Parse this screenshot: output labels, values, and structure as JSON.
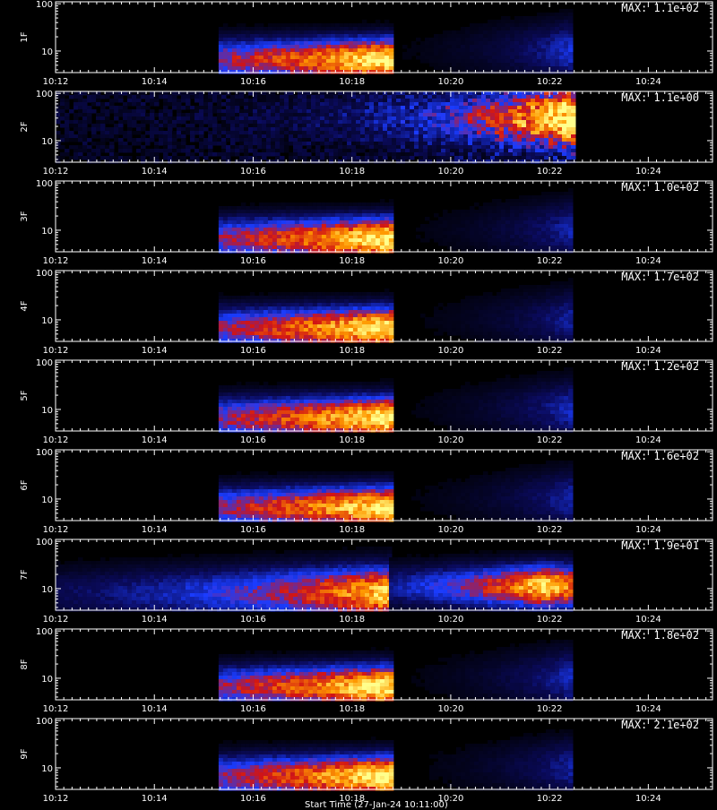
{
  "figure": {
    "footer_label": "Start Time (27-Jan-24 10:11:00)"
  },
  "chart_data": {
    "type": "heatmap",
    "x_ticks": [
      "10:12",
      "10:14",
      "10:16",
      "10:18",
      "10:20",
      "10:22",
      "10:24"
    ],
    "x_tick_minutes": [
      12,
      14,
      16,
      18,
      20,
      22,
      24
    ],
    "xlim_minutes": [
      12,
      25.3
    ],
    "x_unit": "minutes after 10:00",
    "y_ticks": [
      "10",
      "100"
    ],
    "y_scale": "log",
    "ylim": [
      3.5,
      110
    ],
    "colormap": [
      "#000000",
      "#0a0a5a",
      "#1a3cff",
      "#d21414",
      "#ff9a00",
      "#ffff8c"
    ],
    "panels": [
      {
        "label": "1F",
        "max_label": "MAX: 1.1e+02",
        "blobs": [
          {
            "x0": 15.3,
            "x1": 18.75,
            "yc": 6.5,
            "peak_x": 18.65,
            "peak_v": 1.0,
            "grow": 5,
            "spread": 0.45
          },
          {
            "x0": 18.75,
            "x1": 22.45,
            "yc": 10,
            "peak_x": 22.4,
            "peak_v": 0.35,
            "grow": 1.5,
            "spread": 0.6
          }
        ]
      },
      {
        "label": "2F",
        "max_label": "MAX: 1.1e+00",
        "blobs": [
          {
            "x0": 12,
            "x1": 22.45,
            "yc": 30,
            "peak_x": 22.4,
            "peak_v": 0.95,
            "grow": 2.2,
            "spread": 0.55,
            "noise": 0.35
          }
        ]
      },
      {
        "label": "3F",
        "max_label": "MAX: 1.0e+02",
        "blobs": [
          {
            "x0": 15.3,
            "x1": 18.75,
            "yc": 6.5,
            "peak_x": 18.65,
            "peak_v": 1.0,
            "grow": 5,
            "spread": 0.45
          },
          {
            "x0": 18.75,
            "x1": 22.45,
            "yc": 10,
            "peak_x": 22.4,
            "peak_v": 0.3,
            "grow": 1.5,
            "spread": 0.6
          }
        ]
      },
      {
        "label": "4F",
        "max_label": "MAX: 1.7e+02",
        "blobs": [
          {
            "x0": 15.3,
            "x1": 18.75,
            "yc": 6.5,
            "peak_x": 18.65,
            "peak_v": 1.0,
            "grow": 5,
            "spread": 0.45
          },
          {
            "x0": 18.75,
            "x1": 22.45,
            "yc": 10,
            "peak_x": 22.4,
            "peak_v": 0.28,
            "grow": 1.5,
            "spread": 0.6
          }
        ]
      },
      {
        "label": "5F",
        "max_label": "MAX: 1.2e+02",
        "blobs": [
          {
            "x0": 15.3,
            "x1": 18.75,
            "yc": 6.5,
            "peak_x": 18.65,
            "peak_v": 1.0,
            "grow": 5,
            "spread": 0.45
          },
          {
            "x0": 18.75,
            "x1": 22.45,
            "yc": 10,
            "peak_x": 22.4,
            "peak_v": 0.32,
            "grow": 1.5,
            "spread": 0.6
          }
        ]
      },
      {
        "label": "6F",
        "max_label": "MAX: 1.6e+02",
        "blobs": [
          {
            "x0": 15.3,
            "x1": 18.75,
            "yc": 6.5,
            "peak_x": 18.65,
            "peak_v": 1.0,
            "grow": 5,
            "spread": 0.45
          },
          {
            "x0": 18.75,
            "x1": 22.45,
            "yc": 10,
            "peak_x": 22.4,
            "peak_v": 0.3,
            "grow": 1.5,
            "spread": 0.6
          }
        ]
      },
      {
        "label": "7F",
        "max_label": "MAX: 1.9e+01",
        "blobs": [
          {
            "x0": 12,
            "x1": 18.75,
            "yc": 8,
            "peak_x": 18.65,
            "peak_v": 0.92,
            "grow": 4,
            "spread": 0.55
          },
          {
            "x0": 18.75,
            "x1": 22.45,
            "yc": 11,
            "peak_x": 21.9,
            "peak_v": 0.95,
            "grow": 2.5,
            "spread": 0.45
          }
        ]
      },
      {
        "label": "8F",
        "max_label": "MAX: 1.8e+02",
        "blobs": [
          {
            "x0": 15.3,
            "x1": 18.75,
            "yc": 6.5,
            "peak_x": 18.65,
            "peak_v": 1.0,
            "grow": 5,
            "spread": 0.45
          },
          {
            "x0": 18.75,
            "x1": 22.45,
            "yc": 10,
            "peak_x": 22.4,
            "peak_v": 0.32,
            "grow": 1.5,
            "spread": 0.6
          }
        ]
      },
      {
        "label": "9F",
        "max_label": "MAX: 2.1e+02",
        "blobs": [
          {
            "x0": 15.3,
            "x1": 18.75,
            "yc": 6.5,
            "peak_x": 18.65,
            "peak_v": 1.0,
            "grow": 5,
            "spread": 0.45
          },
          {
            "x0": 18.75,
            "x1": 22.45,
            "yc": 10,
            "peak_x": 22.4,
            "peak_v": 0.28,
            "grow": 1.5,
            "spread": 0.6
          }
        ]
      }
    ]
  }
}
